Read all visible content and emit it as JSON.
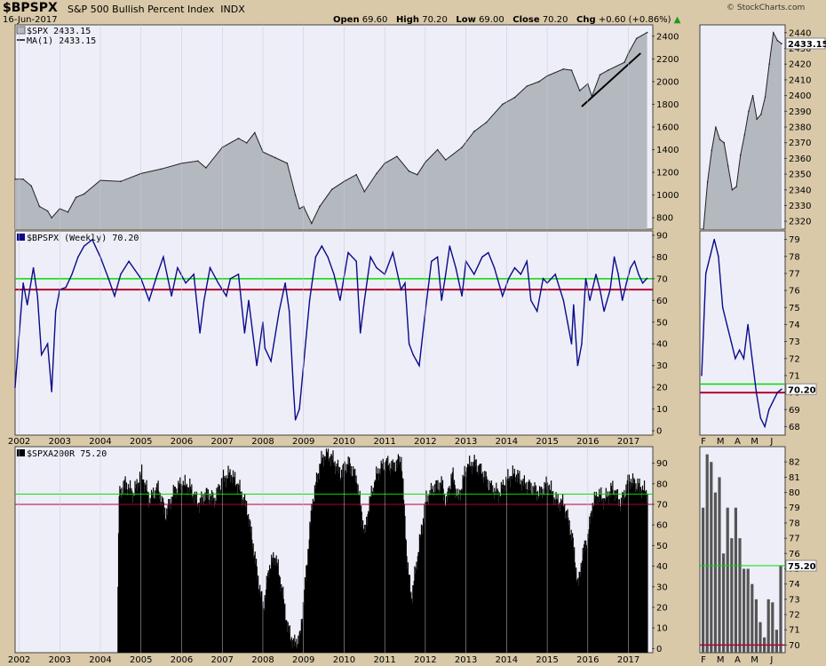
{
  "header": {
    "symbol": "$BPSPX",
    "description": "S&P 500 Bullish Percent Index",
    "exchange": "INDX",
    "date": "16-Jun-2017",
    "open_label": "Open",
    "open": "69.60",
    "high_label": "High",
    "high": "70.20",
    "low_label": "Low",
    "low": "69.00",
    "close_label": "Close",
    "close": "70.20",
    "chg_label": "Chg",
    "chg": "+0.60 (+0.86%)",
    "brand": "© StockCharts.com"
  },
  "colors": {
    "background": "#d9c9a8",
    "panel": "#eeeef8",
    "price_fill": "#b4b9c0",
    "bpi_line": "#0a0a8a",
    "green_line": "#00dd00",
    "red_line": "#b00030",
    "bars": "#000000",
    "zoom_bars": "#555555"
  },
  "chart_data": [
    {
      "type": "area",
      "title": "$SPX",
      "legend": [
        "$SPX 2433.15",
        "MA(1) 2433.15"
      ],
      "ylim": [
        700,
        2500
      ],
      "yticks": [
        800,
        1000,
        1200,
        1400,
        1600,
        1800,
        2000,
        2200,
        2400
      ],
      "x": [
        2001.9,
        2002.1,
        2002.3,
        2002.5,
        2002.7,
        2002.8,
        2003.0,
        2003.2,
        2003.4,
        2003.6,
        2004.0,
        2004.5,
        2005.0,
        2005.5,
        2006.0,
        2006.4,
        2006.6,
        2007.0,
        2007.4,
        2007.6,
        2007.8,
        2008.0,
        2008.3,
        2008.6,
        2008.8,
        2008.9,
        2009.0,
        2009.2,
        2009.4,
        2009.7,
        2010.0,
        2010.3,
        2010.5,
        2010.8,
        2011.0,
        2011.3,
        2011.6,
        2011.8,
        2012.0,
        2012.3,
        2012.5,
        2012.9,
        2013.2,
        2013.5,
        2013.9,
        2014.2,
        2014.5,
        2014.8,
        2015.0,
        2015.4,
        2015.6,
        2015.8,
        2016.0,
        2016.1,
        2016.3,
        2016.5,
        2016.9,
        2017.0,
        2017.2,
        2017.46
      ],
      "values": [
        1140,
        1140,
        1080,
        900,
        860,
        800,
        880,
        850,
        980,
        1010,
        1130,
        1120,
        1190,
        1230,
        1280,
        1300,
        1240,
        1420,
        1500,
        1460,
        1550,
        1380,
        1330,
        1280,
        1000,
        880,
        900,
        750,
        900,
        1050,
        1120,
        1180,
        1030,
        1190,
        1280,
        1340,
        1210,
        1180,
        1290,
        1400,
        1310,
        1420,
        1560,
        1640,
        1800,
        1860,
        1960,
        2000,
        2050,
        2110,
        2100,
        1920,
        1980,
        1870,
        2060,
        2100,
        2170,
        2250,
        2380,
        2433
      ]
    },
    {
      "type": "line",
      "title": "$SPX zoom",
      "ylim": [
        2315,
        2445
      ],
      "yticks": [
        2320,
        2330,
        2340,
        2350,
        2360,
        2370,
        2380,
        2390,
        2400,
        2410,
        2420,
        2430,
        2440
      ],
      "values": [
        2300,
        2345,
        2365,
        2380,
        2372,
        2370,
        2355,
        2340,
        2342,
        2362,
        2375,
        2390,
        2400,
        2385,
        2388,
        2399,
        2420,
        2440,
        2435,
        2433
      ]
    },
    {
      "type": "line",
      "title": "$BPSPX (Weekly)",
      "legend": [
        "$BPSPX (Weekly) 70.20"
      ],
      "ylim": [
        -2,
        92
      ],
      "yticks": [
        0,
        10,
        20,
        30,
        40,
        50,
        60,
        70,
        80,
        90
      ],
      "reference_lines": [
        70,
        65
      ],
      "x": [
        2001.9,
        2002.1,
        2002.2,
        2002.35,
        2002.45,
        2002.55,
        2002.7,
        2002.8,
        2002.9,
        2003.0,
        2003.15,
        2003.3,
        2003.45,
        2003.6,
        2003.8,
        2004.0,
        2004.2,
        2004.35,
        2004.5,
        2004.7,
        2004.85,
        2005.0,
        2005.2,
        2005.4,
        2005.55,
        2005.75,
        2005.9,
        2006.1,
        2006.3,
        2006.45,
        2006.55,
        2006.7,
        2006.9,
        2007.1,
        2007.2,
        2007.4,
        2007.55,
        2007.65,
        2007.85,
        2008.0,
        2008.05,
        2008.2,
        2008.4,
        2008.55,
        2008.65,
        2008.75,
        2008.8,
        2008.9,
        2009.0,
        2009.15,
        2009.3,
        2009.45,
        2009.6,
        2009.75,
        2009.9,
        2010.1,
        2010.3,
        2010.4,
        2010.5,
        2010.65,
        2010.8,
        2011.0,
        2011.2,
        2011.4,
        2011.5,
        2011.6,
        2011.7,
        2011.85,
        2012.0,
        2012.15,
        2012.3,
        2012.4,
        2012.5,
        2012.6,
        2012.75,
        2012.9,
        2013.0,
        2013.2,
        2013.4,
        2013.55,
        2013.7,
        2013.9,
        2014.05,
        2014.2,
        2014.35,
        2014.5,
        2014.6,
        2014.75,
        2014.9,
        2015.0,
        2015.2,
        2015.4,
        2015.5,
        2015.6,
        2015.65,
        2015.75,
        2015.85,
        2015.95,
        2016.05,
        2016.2,
        2016.3,
        2016.4,
        2016.55,
        2016.65,
        2016.75,
        2016.85,
        2016.95,
        2017.05,
        2017.15,
        2017.25,
        2017.35,
        2017.46
      ],
      "values": [
        20,
        68,
        58,
        75,
        62,
        35,
        40,
        18,
        55,
        65,
        66,
        72,
        80,
        85,
        88,
        80,
        70,
        62,
        72,
        78,
        74,
        70,
        60,
        72,
        80,
        62,
        75,
        68,
        72,
        45,
        60,
        75,
        68,
        62,
        70,
        72,
        45,
        60,
        30,
        50,
        38,
        32,
        55,
        68,
        55,
        20,
        5,
        10,
        30,
        60,
        80,
        85,
        80,
        72,
        60,
        82,
        78,
        45,
        60,
        80,
        75,
        72,
        82,
        65,
        68,
        40,
        35,
        30,
        55,
        78,
        80,
        60,
        72,
        85,
        75,
        62,
        78,
        72,
        80,
        82,
        75,
        62,
        70,
        75,
        72,
        78,
        60,
        55,
        70,
        68,
        72,
        60,
        50,
        40,
        58,
        30,
        40,
        70,
        60,
        72,
        65,
        55,
        65,
        80,
        72,
        60,
        68,
        75,
        78,
        72,
        68,
        70.2
      ]
    },
    {
      "type": "line",
      "title": "$BPSPX zoom",
      "ylim": [
        67.5,
        79.5
      ],
      "yticks": [
        68,
        69,
        70,
        71,
        72,
        73,
        74,
        75,
        76,
        77,
        78,
        79
      ],
      "reference_lines": [
        70.5,
        70
      ],
      "values": [
        71,
        77,
        78,
        79,
        78,
        75,
        74,
        73,
        72,
        72.5,
        72,
        74,
        72,
        70,
        68.5,
        68,
        69,
        69.5,
        70,
        70.2
      ]
    },
    {
      "type": "bar",
      "title": "$SPXA200R",
      "legend": [
        "$SPXA200R 75.20"
      ],
      "ylim": [
        -2,
        98
      ],
      "yticks": [
        0,
        10,
        20,
        30,
        40,
        50,
        60,
        70,
        80,
        90
      ],
      "reference_lines": [
        75,
        70
      ],
      "x": [
        2004.4,
        2004.45,
        2004.6,
        2004.8,
        2005.0,
        2005.2,
        2005.4,
        2005.6,
        2005.8,
        2006.0,
        2006.2,
        2006.4,
        2006.6,
        2006.8,
        2007.0,
        2007.2,
        2007.4,
        2007.6,
        2007.75,
        2007.9,
        2008.0,
        2008.15,
        2008.3,
        2008.45,
        2008.6,
        2008.75,
        2008.9,
        2009.0,
        2009.2,
        2009.4,
        2009.55,
        2009.7,
        2009.9,
        2010.1,
        2010.3,
        2010.5,
        2010.6,
        2010.8,
        2011.0,
        2011.2,
        2011.4,
        2011.55,
        2011.65,
        2011.8,
        2012.0,
        2012.2,
        2012.4,
        2012.5,
        2012.65,
        2012.8,
        2013.0,
        2013.2,
        2013.4,
        2013.6,
        2013.8,
        2014.0,
        2014.2,
        2014.4,
        2014.6,
        2014.8,
        2015.0,
        2015.2,
        2015.4,
        2015.6,
        2015.75,
        2015.85,
        2016.0,
        2016.1,
        2016.25,
        2016.4,
        2016.6,
        2016.8,
        2016.9,
        2017.0,
        2017.15,
        2017.3,
        2017.46
      ],
      "values": [
        0,
        75,
        80,
        75,
        85,
        72,
        78,
        65,
        76,
        80,
        78,
        70,
        75,
        72,
        82,
        85,
        78,
        68,
        50,
        30,
        20,
        40,
        45,
        30,
        10,
        2,
        5,
        25,
        70,
        90,
        95,
        92,
        85,
        90,
        82,
        55,
        70,
        85,
        90,
        88,
        92,
        40,
        25,
        45,
        72,
        78,
        80,
        70,
        85,
        72,
        88,
        90,
        85,
        78,
        75,
        82,
        85,
        80,
        78,
        75,
        80,
        72,
        70,
        55,
        30,
        45,
        55,
        70,
        75,
        72,
        78,
        70,
        76,
        82,
        80,
        78,
        75.2
      ]
    },
    {
      "type": "bar",
      "title": "$SPXA200R zoom",
      "ylim": [
        69.5,
        83
      ],
      "yticks": [
        70,
        71,
        72,
        73,
        74,
        75,
        76,
        77,
        78,
        79,
        80,
        81,
        82
      ],
      "reference_lines": [
        75.2,
        70
      ],
      "values": [
        79,
        82.5,
        82,
        80,
        81,
        76,
        79,
        77,
        79,
        77,
        75,
        75,
        74,
        73,
        71.5,
        70.5,
        73,
        72.8,
        71,
        75.2
      ]
    }
  ],
  "badges": {
    "spx_zoom": "2433.15",
    "bpi_zoom": "70.20",
    "a200_zoom": "75.20"
  },
  "axis": {
    "years": [
      "2002",
      "2003",
      "2004",
      "2005",
      "2006",
      "2007",
      "2008",
      "2009",
      "2010",
      "2011",
      "2012",
      "2013",
      "2014",
      "2015",
      "2016",
      "2017"
    ],
    "months": [
      "F",
      "M",
      "A",
      "M",
      "J"
    ]
  }
}
